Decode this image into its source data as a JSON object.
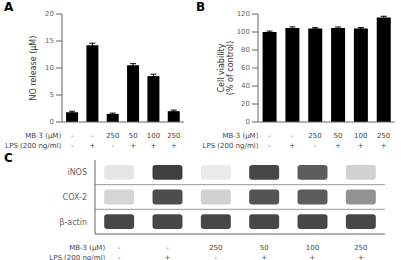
{
  "chart_data": [
    {
      "type": "bar",
      "title": "A",
      "ylabel": "NO release (μM)",
      "values": [
        1.8,
        14.2,
        1.5,
        10.5,
        8.5,
        2.0
      ],
      "errors": [
        0.2,
        0.4,
        0.15,
        0.3,
        0.35,
        0.2
      ],
      "ylim": [
        0,
        20
      ],
      "yticks": [
        0,
        5,
        10,
        15,
        20
      ],
      "category_rows": [
        {
          "label": "MB-3 (μM)",
          "values": [
            "-",
            "-",
            "250",
            "50",
            "100",
            "250"
          ]
        },
        {
          "label": "LPS (200 ng/ml)",
          "values": [
            "-",
            "+",
            "-",
            "+",
            "+",
            "+"
          ]
        }
      ]
    },
    {
      "type": "bar",
      "title": "B",
      "ylabel": "Cell viability\n(% of control)",
      "values": [
        100.0,
        104.5,
        104.0,
        104.5,
        104.0,
        116.0
      ],
      "errors": [
        1.0,
        1.2,
        0.8,
        1.0,
        0.9,
        1.5
      ],
      "ylim": [
        0,
        120
      ],
      "yticks": [
        0,
        20,
        40,
        60,
        80,
        100,
        120
      ],
      "category_rows": [
        {
          "label": "MB-3 (μM)",
          "values": [
            "-",
            "-",
            "250",
            "50",
            "100",
            "250"
          ]
        },
        {
          "label": "LPS (200 ng/ml)",
          "values": [
            "-",
            "+",
            "-",
            "+",
            "+",
            "+"
          ]
        }
      ]
    },
    {
      "type": "heatmap",
      "title": "C",
      "rows": [
        "iNOS",
        "COX-2",
        "β-actin"
      ],
      "cells": [
        [
          0.12,
          0.92,
          0.1,
          0.88,
          0.78,
          0.22
        ],
        [
          0.2,
          0.85,
          0.22,
          0.82,
          0.78,
          0.52
        ],
        [
          0.88,
          0.88,
          0.88,
          0.88,
          0.88,
          0.88
        ]
      ],
      "category_rows": [
        {
          "label": "MB-3 (μM)",
          "values": [
            "-",
            "-",
            "250",
            "50",
            "100",
            "250"
          ]
        },
        {
          "label": "LPS (200 ng/ml)",
          "values": [
            "-",
            "+",
            "-",
            "+",
            "+",
            "+"
          ]
        }
      ]
    }
  ]
}
